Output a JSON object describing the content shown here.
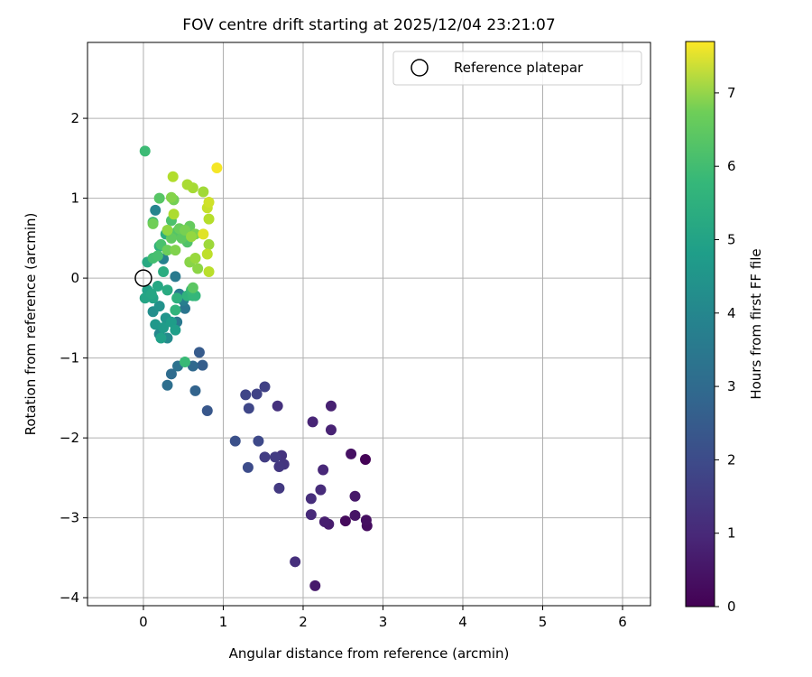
{
  "chart_data": {
    "type": "scatter",
    "title": "FOV centre drift starting at 2025/12/04 23:21:07",
    "xlabel": "Angular distance from reference (arcmin)",
    "ylabel": "Rotation from reference (arcmin)",
    "xlim": [
      -0.7,
      6.35
    ],
    "ylim": [
      -4.1,
      2.95
    ],
    "xticks": [
      0,
      1,
      2,
      3,
      4,
      5,
      6
    ],
    "yticks": [
      -4,
      -3,
      -2,
      -1,
      0,
      1,
      2
    ],
    "xtick_labels": [
      "0",
      "1",
      "2",
      "3",
      "4",
      "5",
      "6"
    ],
    "ytick_labels": [
      "−4",
      "−3",
      "−2",
      "−1",
      "0",
      "1",
      "2"
    ],
    "grid": true,
    "legend": {
      "position": "top-right",
      "entries": [
        {
          "label": "Reference platepar",
          "marker": "open-circle"
        }
      ]
    },
    "reference_point": {
      "x": 0,
      "y": 0
    },
    "colorbar": {
      "label": "Hours from first FF file",
      "colormap": "viridis",
      "range": [
        0,
        7.7
      ],
      "ticks": [
        0,
        1,
        2,
        3,
        4,
        5,
        6,
        7
      ],
      "tick_labels": [
        "0",
        "1",
        "2",
        "3",
        "4",
        "5",
        "6",
        "7"
      ]
    },
    "points": [
      {
        "x": 2.78,
        "y": -2.27,
        "t": 0.05
      },
      {
        "x": 2.53,
        "y": -3.04,
        "t": 0.2
      },
      {
        "x": 2.8,
        "y": -3.1,
        "t": 0.25
      },
      {
        "x": 2.79,
        "y": -3.03,
        "t": 0.3
      },
      {
        "x": 2.6,
        "y": -2.2,
        "t": 0.35
      },
      {
        "x": 2.65,
        "y": -2.97,
        "t": 0.4
      },
      {
        "x": 2.65,
        "y": -2.73,
        "t": 0.5
      },
      {
        "x": 2.15,
        "y": -3.85,
        "t": 0.55
      },
      {
        "x": 2.32,
        "y": -3.08,
        "t": 0.6
      },
      {
        "x": 2.27,
        "y": -3.05,
        "t": 0.65
      },
      {
        "x": 2.35,
        "y": -1.6,
        "t": 0.7
      },
      {
        "x": 2.35,
        "y": -1.9,
        "t": 0.75
      },
      {
        "x": 2.12,
        "y": -1.8,
        "t": 0.8
      },
      {
        "x": 2.25,
        "y": -2.4,
        "t": 0.85
      },
      {
        "x": 2.1,
        "y": -2.96,
        "t": 0.9
      },
      {
        "x": 2.22,
        "y": -2.65,
        "t": 0.95
      },
      {
        "x": 2.1,
        "y": -2.76,
        "t": 1.0
      },
      {
        "x": 1.9,
        "y": -3.55,
        "t": 1.05
      },
      {
        "x": 1.68,
        "y": -1.6,
        "t": 1.1
      },
      {
        "x": 1.73,
        "y": -2.22,
        "t": 1.15
      },
      {
        "x": 1.76,
        "y": -2.33,
        "t": 1.2
      },
      {
        "x": 1.7,
        "y": -2.36,
        "t": 1.25
      },
      {
        "x": 1.7,
        "y": -2.63,
        "t": 1.3
      },
      {
        "x": 1.65,
        "y": -2.24,
        "t": 1.35
      },
      {
        "x": 1.52,
        "y": -2.24,
        "t": 1.4
      },
      {
        "x": 1.52,
        "y": -1.36,
        "t": 1.5
      },
      {
        "x": 1.42,
        "y": -1.45,
        "t": 1.55
      },
      {
        "x": 1.28,
        "y": -1.46,
        "t": 1.6
      },
      {
        "x": 1.32,
        "y": -1.63,
        "t": 1.65
      },
      {
        "x": 1.44,
        "y": -2.04,
        "t": 1.7
      },
      {
        "x": 1.31,
        "y": -2.37,
        "t": 1.8
      },
      {
        "x": 1.15,
        "y": -2.04,
        "t": 1.9
      },
      {
        "x": 0.8,
        "y": -1.66,
        "t": 2.1
      },
      {
        "x": 0.7,
        "y": -0.93,
        "t": 2.2
      },
      {
        "x": 0.74,
        "y": -1.09,
        "t": 2.3
      },
      {
        "x": 0.65,
        "y": -1.41,
        "t": 2.45
      },
      {
        "x": 0.62,
        "y": -1.1,
        "t": 2.6
      },
      {
        "x": 0.35,
        "y": -1.2,
        "t": 2.7
      },
      {
        "x": 0.3,
        "y": -1.34,
        "t": 2.8
      },
      {
        "x": 0.43,
        "y": -1.1,
        "t": 2.9
      },
      {
        "x": 0.52,
        "y": -0.38,
        "t": 3.0
      },
      {
        "x": 0.42,
        "y": -0.55,
        "t": 3.1
      },
      {
        "x": 0.4,
        "y": 0.02,
        "t": 3.15
      },
      {
        "x": 0.45,
        "y": -0.2,
        "t": 3.2
      },
      {
        "x": 0.5,
        "y": -0.28,
        "t": 3.3
      },
      {
        "x": 0.25,
        "y": 0.24,
        "t": 3.4
      },
      {
        "x": 0.15,
        "y": 0.85,
        "t": 3.5
      },
      {
        "x": 0.2,
        "y": -0.7,
        "t": 3.6
      },
      {
        "x": 0.3,
        "y": -0.75,
        "t": 3.7
      },
      {
        "x": 0.12,
        "y": -0.42,
        "t": 3.8
      },
      {
        "x": 0.2,
        "y": -0.35,
        "t": 3.9
      },
      {
        "x": 0.28,
        "y": -0.5,
        "t": 4.0
      },
      {
        "x": 0.15,
        "y": -0.58,
        "t": 4.1
      },
      {
        "x": 0.25,
        "y": -0.62,
        "t": 4.2
      },
      {
        "x": 0.35,
        "y": -0.55,
        "t": 4.25
      },
      {
        "x": 0.4,
        "y": -0.65,
        "t": 4.3
      },
      {
        "x": 0.22,
        "y": -0.75,
        "t": 4.35
      },
      {
        "x": 0.05,
        "y": -0.15,
        "t": 4.4
      },
      {
        "x": 0.12,
        "y": -0.25,
        "t": 4.45
      },
      {
        "x": 0.02,
        "y": -0.25,
        "t": 4.5
      },
      {
        "x": 0.1,
        "y": -0.2,
        "t": 4.55
      },
      {
        "x": 0.18,
        "y": -0.1,
        "t": 4.6
      },
      {
        "x": 0.05,
        "y": 0.2,
        "t": 4.65
      },
      {
        "x": 0.3,
        "y": -0.15,
        "t": 4.7
      },
      {
        "x": 0.25,
        "y": 0.08,
        "t": 4.75
      },
      {
        "x": 0.28,
        "y": 0.55,
        "t": 4.8
      },
      {
        "x": 0.2,
        "y": 0.4,
        "t": 4.85
      },
      {
        "x": 0.42,
        "y": -0.25,
        "t": 4.9
      },
      {
        "x": 0.55,
        "y": -0.22,
        "t": 4.95
      },
      {
        "x": 0.4,
        "y": -0.4,
        "t": 5.0
      },
      {
        "x": 0.62,
        "y": -0.22,
        "t": 5.05
      },
      {
        "x": 0.65,
        "y": -0.22,
        "t": 5.1
      },
      {
        "x": 0.6,
        "y": -0.15,
        "t": 5.15
      },
      {
        "x": 0.52,
        "y": -1.05,
        "t": 5.2
      },
      {
        "x": 0.02,
        "y": 1.59,
        "t": 5.25
      },
      {
        "x": 0.12,
        "y": 0.7,
        "t": 5.3
      },
      {
        "x": 0.12,
        "y": 0.25,
        "t": 5.35
      },
      {
        "x": 0.18,
        "y": 0.28,
        "t": 5.4
      },
      {
        "x": 0.22,
        "y": 0.42,
        "t": 5.45
      },
      {
        "x": 0.35,
        "y": 0.72,
        "t": 5.5
      },
      {
        "x": 0.55,
        "y": 0.45,
        "t": 5.55
      },
      {
        "x": 0.42,
        "y": 0.58,
        "t": 5.6
      },
      {
        "x": 0.2,
        "y": 1.0,
        "t": 5.65
      },
      {
        "x": 0.62,
        "y": -0.12,
        "t": 5.7
      },
      {
        "x": 0.48,
        "y": 0.5,
        "t": 5.75
      },
      {
        "x": 0.35,
        "y": 0.5,
        "t": 5.8
      },
      {
        "x": 0.58,
        "y": 0.65,
        "t": 5.85
      },
      {
        "x": 0.45,
        "y": 0.62,
        "t": 5.9
      },
      {
        "x": 0.3,
        "y": 0.35,
        "t": 5.95
      },
      {
        "x": 0.12,
        "y": 0.68,
        "t": 6.0
      },
      {
        "x": 0.38,
        "y": 0.98,
        "t": 6.05
      },
      {
        "x": 0.52,
        "y": 0.6,
        "t": 6.1
      },
      {
        "x": 0.65,
        "y": 0.55,
        "t": 6.15
      },
      {
        "x": 0.4,
        "y": 0.35,
        "t": 6.2
      },
      {
        "x": 0.35,
        "y": 1.01,
        "t": 6.25
      },
      {
        "x": 0.58,
        "y": 0.2,
        "t": 6.3
      },
      {
        "x": 0.68,
        "y": 0.12,
        "t": 6.35
      },
      {
        "x": 0.3,
        "y": 0.6,
        "t": 6.4
      },
      {
        "x": 0.6,
        "y": 0.52,
        "t": 6.45
      },
      {
        "x": 0.65,
        "y": 0.25,
        "t": 6.5
      },
      {
        "x": 0.82,
        "y": 0.42,
        "t": 6.55
      },
      {
        "x": 0.75,
        "y": 1.08,
        "t": 6.6
      },
      {
        "x": 0.62,
        "y": 1.13,
        "t": 6.65
      },
      {
        "x": 0.55,
        "y": 1.17,
        "t": 6.7
      },
      {
        "x": 0.38,
        "y": 0.8,
        "t": 6.75
      },
      {
        "x": 0.37,
        "y": 1.27,
        "t": 6.8
      },
      {
        "x": 0.82,
        "y": 0.74,
        "t": 6.85
      },
      {
        "x": 0.82,
        "y": 0.08,
        "t": 6.9
      },
      {
        "x": 0.8,
        "y": 0.3,
        "t": 6.95
      },
      {
        "x": 0.8,
        "y": 0.88,
        "t": 7.05
      },
      {
        "x": 0.82,
        "y": 0.95,
        "t": 7.15
      },
      {
        "x": 0.75,
        "y": 0.55,
        "t": 7.35
      },
      {
        "x": 0.92,
        "y": 1.38,
        "t": 7.6
      }
    ]
  }
}
